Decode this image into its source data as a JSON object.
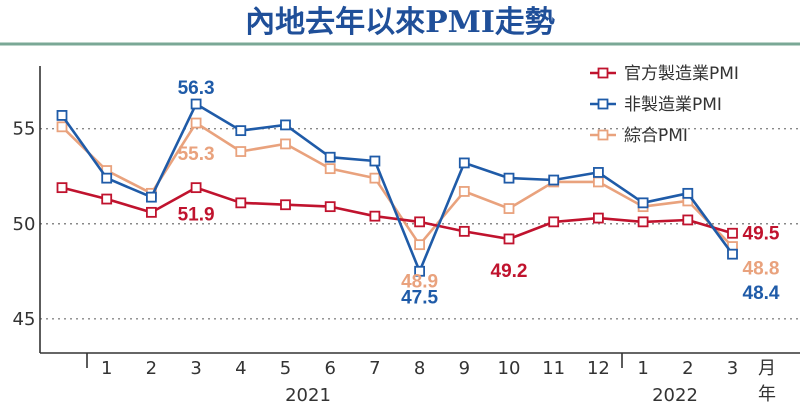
{
  "title": "內地去年以來PMI走勢",
  "colors": {
    "official": "#c0132e",
    "non_manufacturing": "#1f5ba8",
    "composite": "#e9a27d",
    "title_rule": "#7aa896",
    "grid": "#888888",
    "axis": "#333333"
  },
  "chart_data": {
    "type": "line",
    "x": [
      "12",
      "1",
      "2",
      "3",
      "4",
      "5",
      "6",
      "7",
      "8",
      "9",
      "10",
      "11",
      "12",
      "1",
      "2",
      "3"
    ],
    "x_tick_labels": [
      "1",
      "2",
      "3",
      "4",
      "5",
      "6",
      "7",
      "8",
      "9",
      "10",
      "11",
      "12",
      "1",
      "2",
      "3"
    ],
    "x_unit_label": [
      "月",
      "年"
    ],
    "year_labels": [
      "2021",
      "2022"
    ],
    "y_ticks": [
      45,
      50,
      55
    ],
    "ylim": [
      43.2,
      58.3
    ],
    "grid": "dotted horizontal at 45, 50, 55",
    "legend_position": "top-right",
    "series": [
      {
        "name": "官方製造業PMI",
        "color_key": "official",
        "values": [
          51.9,
          51.3,
          50.6,
          51.9,
          51.1,
          51.0,
          50.9,
          50.4,
          50.1,
          49.6,
          49.2,
          50.1,
          50.3,
          50.1,
          50.2,
          49.5
        ]
      },
      {
        "name": "非製造業PMI",
        "color_key": "non_manufacturing",
        "values": [
          55.7,
          52.4,
          51.4,
          56.3,
          54.9,
          55.2,
          53.5,
          53.3,
          47.5,
          53.2,
          52.4,
          52.3,
          52.7,
          51.1,
          51.6,
          48.4
        ]
      },
      {
        "name": "綜合PMI",
        "color_key": "composite",
        "values": [
          55.1,
          52.8,
          51.6,
          55.3,
          53.8,
          54.2,
          52.9,
          52.4,
          48.9,
          51.7,
          50.8,
          52.2,
          52.2,
          50.9,
          51.2,
          48.8
        ]
      }
    ],
    "annotations": [
      {
        "text": "56.3",
        "series": 1,
        "index": 3
      },
      {
        "text": "55.3",
        "series": 2,
        "index": 3
      },
      {
        "text": "51.9",
        "series": 0,
        "index": 3
      },
      {
        "text": "48.9",
        "series": 2,
        "index": 8
      },
      {
        "text": "47.5",
        "series": 1,
        "index": 8
      },
      {
        "text": "49.2",
        "series": 0,
        "index": 10
      },
      {
        "text": "49.5",
        "series": 0,
        "index": 15
      },
      {
        "text": "48.8",
        "series": 2,
        "index": 15
      },
      {
        "text": "48.4",
        "series": 1,
        "index": 15
      }
    ]
  }
}
